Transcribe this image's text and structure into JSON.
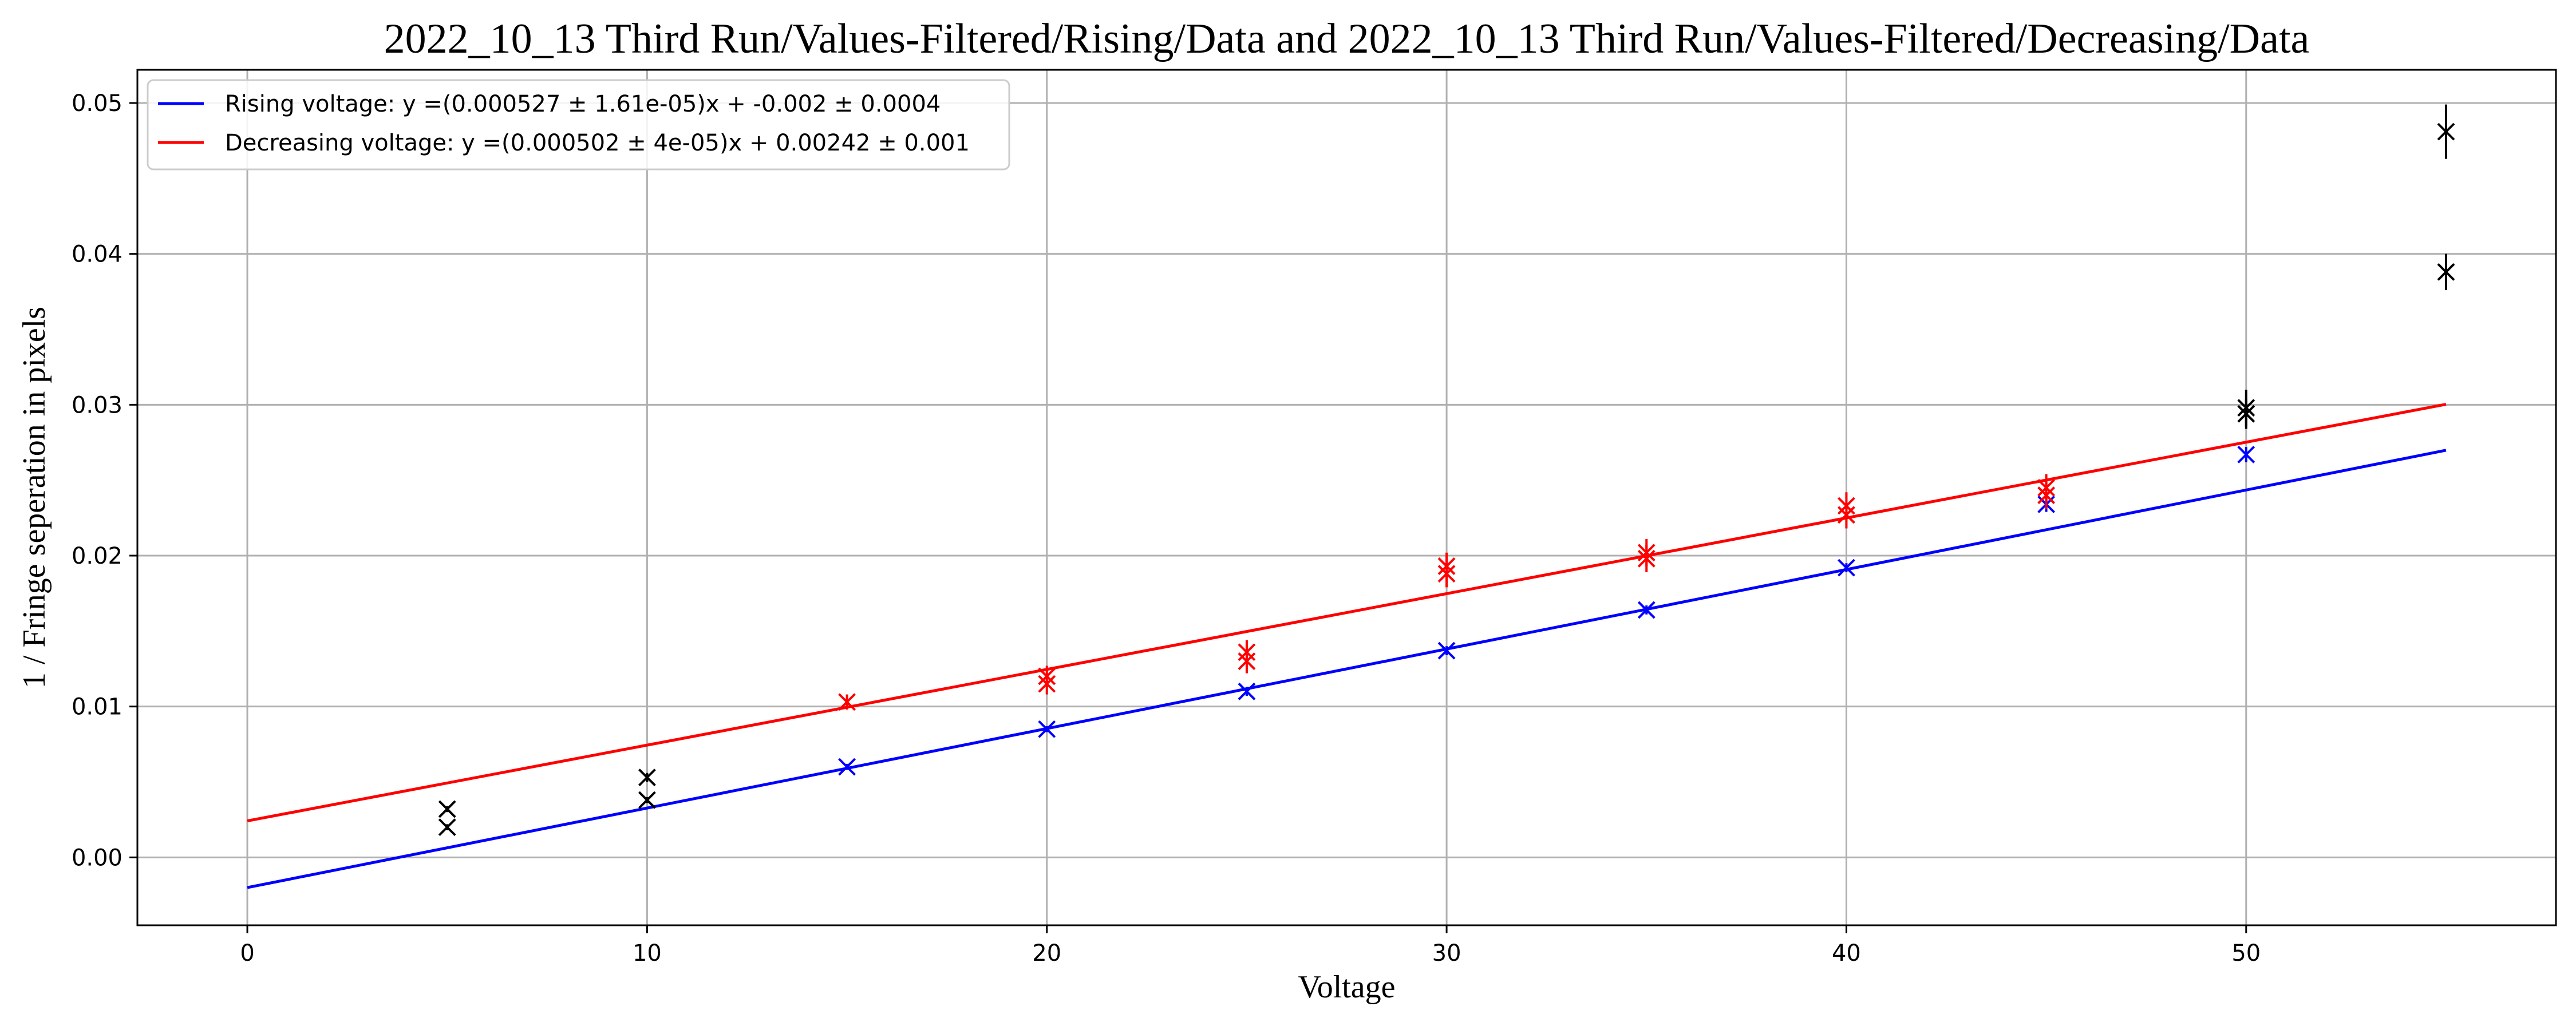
{
  "chart_data": {
    "type": "scatter",
    "title": "2022_10_13 Third Run/Values-Filtered/Rising/Data and 2022_10_13 Third Run/Values-Filtered/Decreasing/Data",
    "xlabel": "Voltage",
    "ylabel": "1 / Fringe seperation in pixels",
    "xlim": [
      -2.75,
      57.75
    ],
    "ylim": [
      -0.0045,
      0.0522
    ],
    "xticks": [
      0,
      10,
      20,
      30,
      40,
      50
    ],
    "yticks": [
      0.0,
      0.01,
      0.02,
      0.03,
      0.04,
      0.05
    ],
    "ytick_labels": [
      "0.00",
      "0.01",
      "0.02",
      "0.03",
      "0.04",
      "0.05"
    ],
    "grid": true,
    "legend_position": "top-left",
    "fit_lines": [
      {
        "name": "Rising voltage: y =(0.000527 ± 1.61e-05)x + -0.002 ± 0.0004",
        "color": "#0000ff",
        "slope": 0.000527,
        "intercept": -0.002,
        "x_range": [
          0,
          55
        ]
      },
      {
        "name": "Decreasing voltage: y =(0.000502 ± 4e-05)x + 0.00242 ± 0.001",
        "color": "#ff0000",
        "slope": 0.000502,
        "intercept": 0.00242,
        "x_range": [
          0,
          55
        ]
      }
    ],
    "points": [
      {
        "color": "#000000",
        "data": [
          {
            "x": 5,
            "y": 0.0032,
            "err": 0.0002
          },
          {
            "x": 5,
            "y": 0.002,
            "err": 0.0002
          },
          {
            "x": 10,
            "y": 0.0053,
            "err": 0.0003
          },
          {
            "x": 10,
            "y": 0.0038,
            "err": 0.0002
          },
          {
            "x": 50,
            "y": 0.0298,
            "err": 0.0012
          },
          {
            "x": 50,
            "y": 0.0294,
            "err": 0.001
          },
          {
            "x": 55,
            "y": 0.0481,
            "err": 0.0018
          },
          {
            "x": 55,
            "y": 0.0388,
            "err": 0.0012
          }
        ]
      },
      {
        "color": "#0000ff",
        "data": [
          {
            "x": 15,
            "y": 0.006,
            "err": 0.0002
          },
          {
            "x": 20,
            "y": 0.0085,
            "err": 0.0002
          },
          {
            "x": 25,
            "y": 0.011,
            "err": 0.0003
          },
          {
            "x": 30,
            "y": 0.0137,
            "err": 0.0003
          },
          {
            "x": 35,
            "y": 0.0164,
            "err": 0.0003
          },
          {
            "x": 40,
            "y": 0.0192,
            "err": 0.0003
          },
          {
            "x": 45,
            "y": 0.0234,
            "err": 0.0005
          },
          {
            "x": 50,
            "y": 0.0267,
            "err": 0.0005
          }
        ]
      },
      {
        "color": "#ff0000",
        "data": [
          {
            "x": 15,
            "y": 0.0103,
            "err": 0.0005
          },
          {
            "x": 20,
            "y": 0.0115,
            "err": 0.0007
          },
          {
            "x": 20,
            "y": 0.012,
            "err": 0.0007
          },
          {
            "x": 25,
            "y": 0.013,
            "err": 0.0008
          },
          {
            "x": 25,
            "y": 0.0136,
            "err": 0.0008
          },
          {
            "x": 30,
            "y": 0.0188,
            "err": 0.0009
          },
          {
            "x": 30,
            "y": 0.0193,
            "err": 0.0009
          },
          {
            "x": 35,
            "y": 0.0198,
            "err": 0.0009
          },
          {
            "x": 35,
            "y": 0.0202,
            "err": 0.0009
          },
          {
            "x": 40,
            "y": 0.0227,
            "err": 0.0009
          },
          {
            "x": 40,
            "y": 0.0233,
            "err": 0.0009
          },
          {
            "x": 45,
            "y": 0.024,
            "err": 0.0009
          },
          {
            "x": 45,
            "y": 0.0245,
            "err": 0.0009
          }
        ]
      }
    ]
  }
}
